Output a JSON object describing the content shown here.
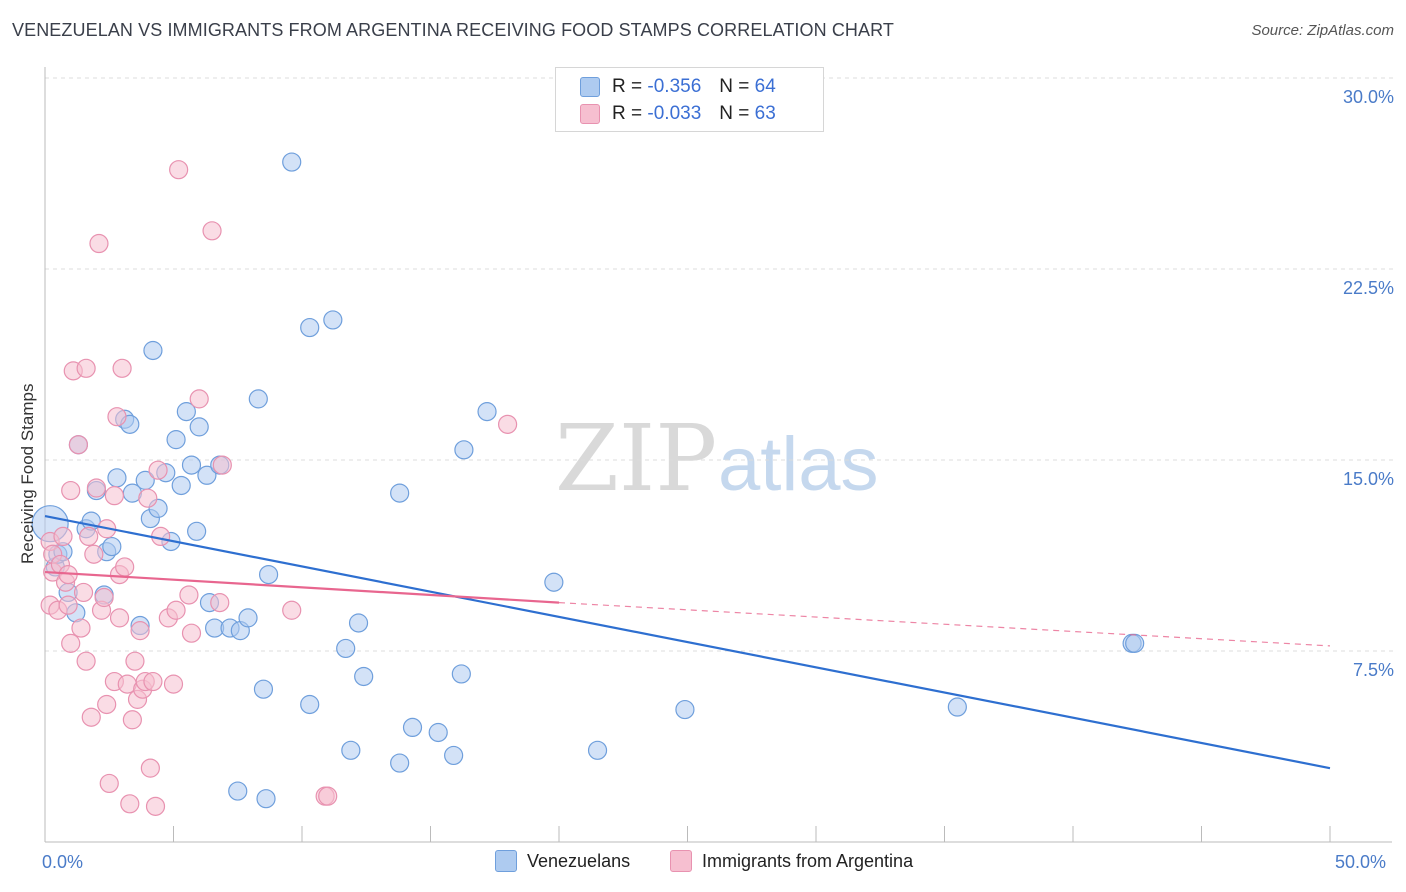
{
  "title": "VENEZUELAN VS IMMIGRANTS FROM ARGENTINA RECEIVING FOOD STAMPS CORRELATION CHART",
  "source": "Source: ZipAtlas.com",
  "watermark": {
    "zip": "ZIP",
    "atlas": "atlas"
  },
  "colors": {
    "blue_fill": "#aecbf0",
    "blue_stroke": "#6f9fdc",
    "blue_line": "#2e6fd0",
    "pink_fill": "#f6bfd0",
    "pink_stroke": "#e892b0",
    "pink_line": "#e8668f",
    "axis_text": "#4a7bc8",
    "grid": "#dddddd"
  },
  "legend": {
    "rows": [
      {
        "r_label": "R =",
        "r_value": "-0.356",
        "n_label": "N =",
        "n_value": "64",
        "color": "#aecbf0",
        "stroke": "#6f9fdc"
      },
      {
        "r_label": "R =",
        "r_value": "-0.033",
        "n_label": "N =",
        "n_value": "63",
        "color": "#f6bfd0",
        "stroke": "#e892b0"
      }
    ]
  },
  "chart_data": {
    "type": "scatter",
    "title": "VENEZUELAN VS IMMIGRANTS FROM ARGENTINA RECEIVING FOOD STAMPS CORRELATION CHART",
    "xlabel": "",
    "ylabel": "Receiving Food Stamps",
    "xlim": [
      0,
      50
    ],
    "ylim": [
      0,
      30
    ],
    "x_tick_labels": [
      "0.0%",
      "50.0%"
    ],
    "y_ticks": [
      7.5,
      15.0,
      22.5,
      30.0
    ],
    "y_tick_labels": [
      "7.5%",
      "15.0%",
      "22.5%",
      "30.0%"
    ],
    "grid": "horizontal dashed",
    "legend_placement": "bottom",
    "series": [
      {
        "name": "Venezuelans",
        "color": "#aecbf0",
        "trend": {
          "x": [
            0,
            50
          ],
          "y": [
            12.8,
            2.9
          ],
          "style": "solid"
        },
        "points": [
          [
            0.2,
            12.5
          ],
          [
            0.4,
            10.8
          ],
          [
            0.5,
            11.3
          ],
          [
            0.7,
            11.4
          ],
          [
            0.9,
            9.8
          ],
          [
            1.2,
            9.0
          ],
          [
            1.3,
            15.6
          ],
          [
            1.6,
            12.3
          ],
          [
            1.8,
            12.6
          ],
          [
            2.0,
            13.8
          ],
          [
            2.3,
            9.7
          ],
          [
            2.4,
            11.4
          ],
          [
            2.6,
            11.6
          ],
          [
            2.8,
            14.3
          ],
          [
            3.1,
            16.6
          ],
          [
            3.3,
            16.4
          ],
          [
            3.4,
            13.7
          ],
          [
            3.7,
            8.5
          ],
          [
            3.9,
            14.2
          ],
          [
            4.1,
            12.7
          ],
          [
            4.2,
            19.3
          ],
          [
            4.4,
            13.1
          ],
          [
            4.7,
            14.5
          ],
          [
            4.9,
            11.8
          ],
          [
            5.1,
            15.8
          ],
          [
            5.3,
            14.0
          ],
          [
            5.5,
            16.9
          ],
          [
            5.7,
            14.8
          ],
          [
            5.9,
            12.2
          ],
          [
            6.0,
            16.3
          ],
          [
            6.3,
            14.4
          ],
          [
            6.4,
            9.4
          ],
          [
            6.6,
            8.4
          ],
          [
            6.8,
            14.8
          ],
          [
            7.2,
            8.4
          ],
          [
            7.5,
            2.0
          ],
          [
            7.6,
            8.3
          ],
          [
            7.9,
            8.8
          ],
          [
            8.3,
            17.4
          ],
          [
            8.5,
            6.0
          ],
          [
            8.6,
            1.7
          ],
          [
            8.7,
            10.5
          ],
          [
            9.6,
            26.7
          ],
          [
            10.3,
            20.2
          ],
          [
            10.3,
            5.4
          ],
          [
            11.2,
            20.5
          ],
          [
            11.7,
            7.6
          ],
          [
            11.9,
            3.6
          ],
          [
            12.2,
            8.6
          ],
          [
            12.4,
            6.5
          ],
          [
            13.8,
            3.1
          ],
          [
            13.8,
            13.7
          ],
          [
            14.3,
            4.5
          ],
          [
            15.3,
            4.3
          ],
          [
            15.9,
            3.4
          ],
          [
            16.2,
            6.6
          ],
          [
            16.3,
            15.4
          ],
          [
            17.2,
            16.9
          ],
          [
            19.8,
            10.2
          ],
          [
            21.5,
            3.6
          ],
          [
            24.9,
            5.2
          ],
          [
            35.5,
            5.3
          ],
          [
            42.3,
            7.8
          ],
          [
            42.4,
            7.8
          ]
        ]
      },
      {
        "name": "Immigrants from Argentina",
        "color": "#f6bfd0",
        "trend": {
          "x": [
            0,
            20
          ],
          "y": [
            10.6,
            9.4
          ],
          "style": "solid",
          "extension": {
            "x": [
              20,
              50
            ],
            "y": [
              9.4,
              7.7
            ],
            "style": "dashed"
          }
        },
        "points": [
          [
            0.2,
            11.8
          ],
          [
            0.2,
            9.3
          ],
          [
            0.3,
            10.6
          ],
          [
            0.3,
            11.3
          ],
          [
            0.5,
            9.1
          ],
          [
            0.6,
            10.9
          ],
          [
            0.7,
            12.0
          ],
          [
            0.8,
            10.2
          ],
          [
            0.9,
            9.3
          ],
          [
            0.9,
            10.5
          ],
          [
            1.0,
            13.8
          ],
          [
            1.0,
            7.8
          ],
          [
            1.1,
            18.5
          ],
          [
            1.3,
            15.6
          ],
          [
            1.4,
            8.4
          ],
          [
            1.5,
            9.8
          ],
          [
            1.6,
            18.6
          ],
          [
            1.6,
            7.1
          ],
          [
            1.7,
            12.0
          ],
          [
            1.8,
            4.9
          ],
          [
            1.9,
            11.3
          ],
          [
            2.0,
            13.9
          ],
          [
            2.1,
            23.5
          ],
          [
            2.2,
            9.1
          ],
          [
            2.3,
            9.6
          ],
          [
            2.4,
            12.3
          ],
          [
            2.4,
            5.4
          ],
          [
            2.5,
            2.3
          ],
          [
            2.7,
            13.6
          ],
          [
            2.7,
            6.3
          ],
          [
            2.8,
            16.7
          ],
          [
            2.9,
            8.8
          ],
          [
            2.9,
            10.5
          ],
          [
            3.0,
            18.6
          ],
          [
            3.1,
            10.8
          ],
          [
            3.2,
            6.2
          ],
          [
            3.3,
            1.5
          ],
          [
            3.4,
            4.8
          ],
          [
            3.5,
            7.1
          ],
          [
            3.6,
            5.6
          ],
          [
            3.7,
            8.3
          ],
          [
            3.8,
            6.0
          ],
          [
            3.9,
            6.3
          ],
          [
            4.0,
            13.5
          ],
          [
            4.1,
            2.9
          ],
          [
            4.2,
            6.3
          ],
          [
            4.3,
            1.4
          ],
          [
            4.4,
            14.6
          ],
          [
            4.5,
            12.0
          ],
          [
            4.8,
            8.8
          ],
          [
            5.0,
            6.2
          ],
          [
            5.1,
            9.1
          ],
          [
            5.2,
            26.4
          ],
          [
            5.6,
            9.7
          ],
          [
            5.7,
            8.2
          ],
          [
            6.0,
            17.4
          ],
          [
            6.5,
            24.0
          ],
          [
            6.8,
            9.4
          ],
          [
            6.9,
            14.8
          ],
          [
            9.6,
            9.1
          ],
          [
            10.9,
            1.8
          ],
          [
            11.0,
            1.8
          ],
          [
            18.0,
            16.4
          ]
        ]
      }
    ]
  },
  "bottom_legend": {
    "items": [
      "Venezuelans",
      "Immigrants from Argentina"
    ]
  }
}
